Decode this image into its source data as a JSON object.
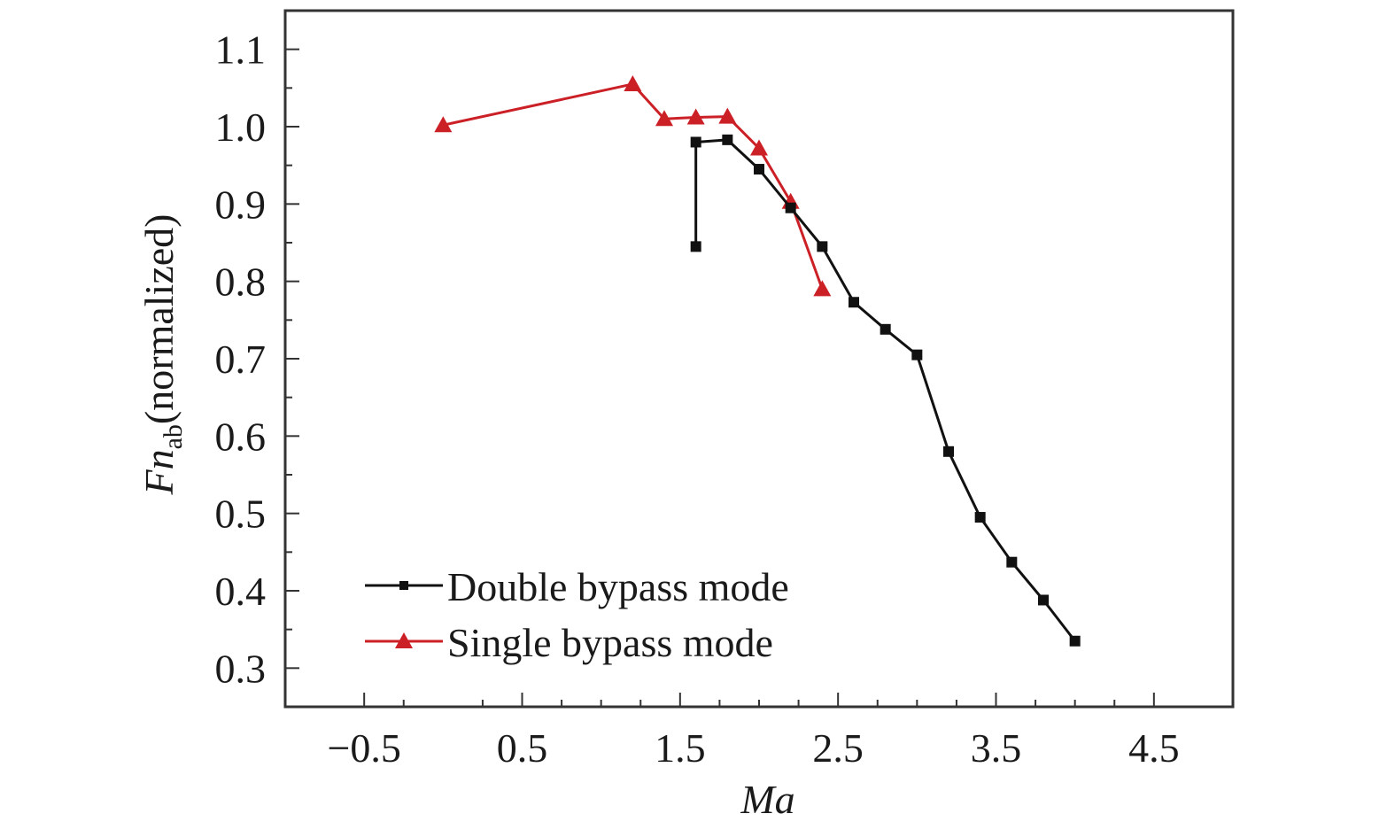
{
  "chart_data": {
    "type": "line",
    "title": "",
    "xlabel": "Ma",
    "ylabel": {
      "main": "Fn",
      "subscript": "ab",
      "suffix": "(normalized)"
    },
    "xlim": [
      -1.0,
      5.0
    ],
    "ylim": [
      0.25,
      1.15
    ],
    "xticks": [
      -0.5,
      0.5,
      1.5,
      2.5,
      3.5,
      4.5
    ],
    "xtick_labels": [
      "−0.5",
      "0.5",
      "1.5",
      "2.5",
      "3.5",
      "4.5"
    ],
    "xminor_ticks": [
      -0.25,
      0.25,
      0.75,
      1.0,
      1.25,
      1.75,
      2.0,
      2.25,
      2.75,
      3.0,
      3.25,
      3.75,
      4.0,
      4.25
    ],
    "yticks": [
      0.3,
      0.4,
      0.5,
      0.6,
      0.7,
      0.8,
      0.9,
      1.0,
      1.1
    ],
    "ytick_labels": [
      "0.3",
      "0.4",
      "0.5",
      "0.6",
      "0.7",
      "0.8",
      "0.9",
      "1.0",
      "1.1"
    ],
    "yminor_ticks": [
      0.35,
      0.45,
      0.55,
      0.65,
      0.75,
      0.85,
      0.95,
      1.05
    ],
    "grid": false,
    "legend_position": "bottom-left",
    "series": [
      {
        "name": "Double bypass mode",
        "color": "#111111",
        "marker": "square",
        "x": [
          1.6,
          1.6,
          1.8,
          2.0,
          2.2,
          2.4,
          2.6,
          2.8,
          3.0,
          3.2,
          3.4,
          3.6,
          3.8,
          4.0
        ],
        "y": [
          0.845,
          0.98,
          0.983,
          0.945,
          0.895,
          0.845,
          0.773,
          0.738,
          0.705,
          0.58,
          0.495,
          0.437,
          0.388,
          0.335
        ]
      },
      {
        "name": "Single bypass mode",
        "color": "#cc2027",
        "marker": "triangle",
        "x": [
          0.0,
          1.2,
          1.4,
          1.6,
          1.8,
          2.0,
          2.2,
          2.4
        ],
        "y": [
          1.002,
          1.055,
          1.01,
          1.012,
          1.013,
          0.972,
          0.903,
          0.79
        ]
      }
    ]
  }
}
